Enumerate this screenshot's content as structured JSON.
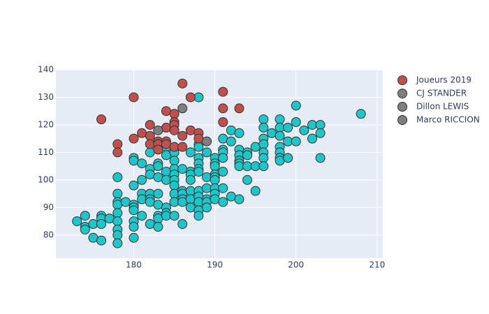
{
  "chart_data": {
    "type": "scatter",
    "xlim": [
      170.4,
      210.7
    ],
    "ylim": [
      71.6,
      140
    ],
    "xticks": [
      180,
      190,
      200,
      210
    ],
    "yticks": [
      80,
      90,
      100,
      110,
      120,
      130,
      140
    ],
    "grid": true,
    "legend": "top-right",
    "series": [
      {
        "color": "#1fc5c9",
        "x": [
          173,
          174,
          174,
          174,
          175,
          175,
          176,
          176,
          176,
          176,
          177,
          178,
          178,
          178,
          178,
          178,
          178,
          178,
          178,
          178,
          179,
          180,
          180,
          180,
          180,
          180,
          180,
          180,
          180,
          180,
          181,
          181,
          181,
          181,
          181,
          182,
          182,
          182,
          182,
          182,
          182,
          182,
          183,
          183,
          183,
          183,
          183,
          183,
          183,
          183,
          184,
          184,
          184,
          184,
          184,
          184,
          184,
          185,
          185,
          185,
          185,
          185,
          185,
          185,
          185,
          185,
          186,
          186,
          186,
          186,
          186,
          186,
          187,
          187,
          187,
          187,
          187,
          187,
          187,
          188,
          188,
          188,
          188,
          188,
          188,
          188,
          188,
          188,
          188,
          188,
          188,
          189,
          189,
          189,
          189,
          189,
          189,
          190,
          190,
          190,
          190,
          190,
          190,
          190,
          190,
          190,
          191,
          191,
          191,
          191,
          191,
          191,
          191,
          192,
          192,
          192,
          193,
          193,
          193,
          193,
          193,
          193,
          193,
          194,
          194,
          194,
          194,
          195,
          195,
          195,
          196,
          196,
          196,
          196,
          196,
          196,
          196,
          197,
          198,
          198,
          198,
          198,
          198,
          198,
          198,
          199,
          199,
          199,
          200,
          200,
          200,
          201,
          202,
          202,
          203,
          203,
          203,
          208
        ],
        "values": [
          85,
          87,
          83,
          82,
          84,
          79,
          87,
          86,
          84,
          78,
          86,
          101,
          95,
          92,
          91,
          88,
          85,
          82,
          80,
          77,
          92,
          108,
          107,
          98,
          91,
          90,
          89,
          85,
          83,
          79,
          106,
          100,
          95,
          93,
          87,
          110,
          104,
          102,
          95,
          93,
          92,
          84,
          106,
          105,
          101,
          95,
          91,
          87,
          86,
          83,
          112,
          109,
          103,
          100,
          90,
          88,
          87,
          110,
          107,
          104,
          102,
          100,
          98,
          95,
          92,
          87,
          104,
          96,
          95,
          93,
          92,
          84,
          110,
          103,
          102,
          100,
          96,
          93,
          90,
          130,
          113,
          112,
          108,
          106,
          104,
          103,
          96,
          94,
          92,
          89,
          87,
          110,
          101,
          97,
          93,
          92,
          90,
          108,
          106,
          105,
          102,
          101,
          100,
          97,
          95,
          93,
          115,
          111,
          110,
          108,
          103,
          97,
          92,
          118,
          114,
          94,
          117,
          111,
          109,
          107,
          106,
          105,
          93,
          110,
          109,
          105,
          100,
          112,
          105,
          96,
          122,
          119,
          115,
          113,
          110,
          108,
          105,
          117,
          122,
          119,
          116,
          112,
          110,
          108,
          107,
          119,
          114,
          108,
          127,
          121,
          114,
          118,
          120,
          115,
          120,
          117,
          108,
          124
        ]
      },
      {
        "name": "Joueurs 2019",
        "color": "#c0504d",
        "x": [
          176,
          178,
          178,
          180,
          180,
          181,
          182,
          182,
          182,
          183,
          183,
          183,
          184,
          184,
          184,
          184,
          185,
          185,
          185,
          185,
          185,
          186,
          186,
          186,
          187,
          187,
          188,
          188,
          191,
          191,
          191,
          193
        ],
        "values": [
          122,
          113,
          110,
          130,
          115,
          117,
          120,
          116,
          113,
          114,
          113,
          111,
          125,
          119,
          114,
          113,
          124,
          121,
          120,
          118,
          112,
          135,
          116,
          112,
          130,
          118,
          117,
          115,
          132,
          126,
          121,
          126
        ]
      },
      {
        "name": "CJ STANDER",
        "color": "#7f7f7f",
        "x": [
          183
        ],
        "values": [
          118
        ]
      },
      {
        "name": "Dillon LEWIS",
        "color": "#7f7f7f",
        "x": [
          186
        ],
        "values": [
          126
        ]
      },
      {
        "name": "Marco RICCION",
        "color": "#7f7f7f",
        "x": [
          189
        ],
        "values": [
          114
        ]
      }
    ]
  }
}
